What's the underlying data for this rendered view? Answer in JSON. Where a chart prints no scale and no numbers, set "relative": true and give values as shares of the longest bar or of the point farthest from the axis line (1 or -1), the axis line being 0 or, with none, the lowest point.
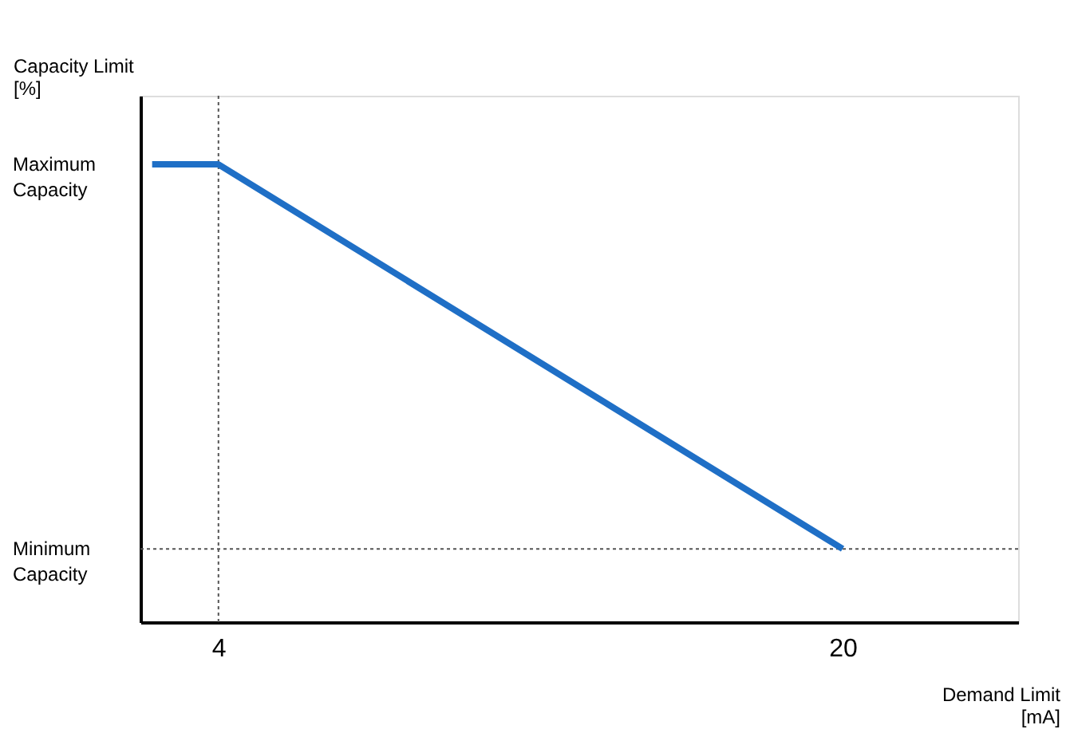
{
  "chart_data": {
    "type": "line",
    "xlabel": "Demand Limit\n[mA]",
    "ylabel": "Capacity Limit\n[%]",
    "relative": true,
    "series": [
      {
        "color": "#1f6fc6",
        "x": [
          2.3,
          4,
          20
        ],
        "values": [
          1,
          1,
          0.16
        ]
      }
    ],
    "xlim": [
      2,
      24.5
    ],
    "xticks": [
      4,
      20
    ],
    "annotations": [
      "Maximum\nCapacity",
      "Minimum\nCapacity"
    ],
    "ref_lines": [
      {
        "axis": "x",
        "value": 4,
        "line_style": "dotted",
        "color": "#555555"
      },
      {
        "axis": "y",
        "value": 0.16,
        "line_style": "dotted",
        "color": "#555555"
      }
    ],
    "grid": false,
    "legend": false,
    "marker": "none",
    "line_style": "solid"
  }
}
